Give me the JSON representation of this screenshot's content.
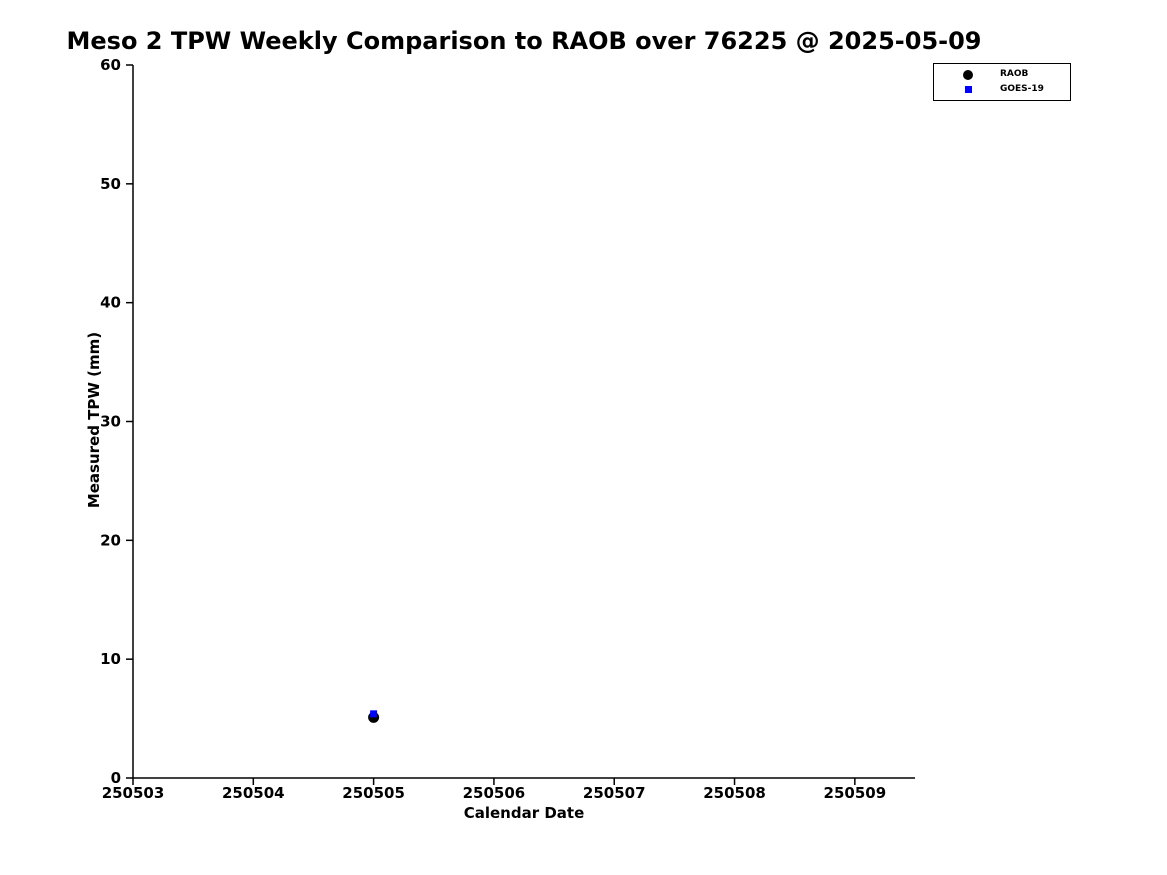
{
  "chart_data": {
    "type": "scatter",
    "title": "Meso 2 TPW Weekly Comparison to RAOB over 76225 @ 2025-05-09",
    "xlabel": "Calendar Date",
    "ylabel": "Measured TPW (mm)",
    "xlim": [
      250503,
      250509.5
    ],
    "ylim": [
      0,
      60
    ],
    "x_ticks": [
      250503,
      250504,
      250505,
      250506,
      250507,
      250508,
      250509
    ],
    "y_ticks": [
      0,
      10,
      20,
      30,
      40,
      50,
      60
    ],
    "grid": false,
    "legend_position": "top-right",
    "series": [
      {
        "name": "RAOB",
        "marker": "circle",
        "marker_size": 11,
        "color": "#000000",
        "points": [
          {
            "x": 250505,
            "y": 5.1
          }
        ]
      },
      {
        "name": "GOES-19",
        "marker": "square",
        "marker_size": 7,
        "color": "#0000ff",
        "points": [
          {
            "x": 250505,
            "y": 5.4
          }
        ]
      }
    ]
  }
}
